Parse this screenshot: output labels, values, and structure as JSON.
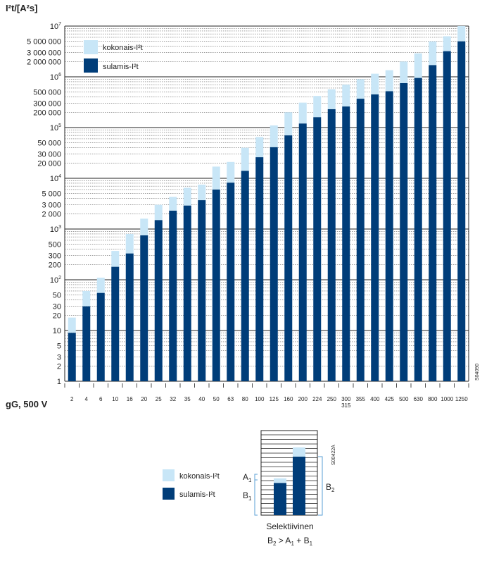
{
  "chart_data": [
    {
      "type": "bar",
      "stacked": true,
      "y_scale": "log",
      "ylabel": "I²t/[A²s]",
      "xlabel": "gG, 500 V",
      "ylim": [
        1,
        10000000
      ],
      "y_major_ticks": [
        {
          "value": 1,
          "label": "1"
        },
        {
          "value": 10,
          "label": "10"
        },
        {
          "value": 100,
          "label": "10",
          "sup": "2"
        },
        {
          "value": 1000,
          "label": "10",
          "sup": "3"
        },
        {
          "value": 10000,
          "label": "10",
          "sup": "4"
        },
        {
          "value": 100000,
          "label": "10",
          "sup": "5"
        },
        {
          "value": 1000000,
          "label": "10",
          "sup": "6"
        },
        {
          "value": 10000000,
          "label": "10",
          "sup": "7"
        }
      ],
      "y_minor_tick_labels": [
        {
          "value": 2,
          "label": "2"
        },
        {
          "value": 3,
          "label": "3"
        },
        {
          "value": 5,
          "label": "5"
        },
        {
          "value": 20,
          "label": "20"
        },
        {
          "value": 30,
          "label": "30"
        },
        {
          "value": 50,
          "label": "50"
        },
        {
          "value": 200,
          "label": "200"
        },
        {
          "value": 300,
          "label": "300"
        },
        {
          "value": 500,
          "label": "500"
        },
        {
          "value": 2000,
          "label": "2 000"
        },
        {
          "value": 3000,
          "label": "3 000"
        },
        {
          "value": 5000,
          "label": "5 000"
        },
        {
          "value": 20000,
          "label": "20 000"
        },
        {
          "value": 30000,
          "label": "30 000"
        },
        {
          "value": 50000,
          "label": "50 000"
        },
        {
          "value": 200000,
          "label": "200 000"
        },
        {
          "value": 300000,
          "label": "300 000"
        },
        {
          "value": 500000,
          "label": "500 000"
        },
        {
          "value": 2000000,
          "label": "2 000 000"
        },
        {
          "value": 3000000,
          "label": "3 000 000"
        },
        {
          "value": 5000000,
          "label": "5 000 000"
        }
      ],
      "categories": [
        "2",
        "4",
        "6",
        "10",
        "16",
        "20",
        "25",
        "32",
        "35",
        "40",
        "50",
        "63",
        "80",
        "100",
        "125",
        "160",
        "200",
        "224",
        "250",
        "300",
        "355",
        "400",
        "425",
        "500",
        "630",
        "800",
        "1000",
        "1250"
      ],
      "extra_category_labels": [
        {
          "under": "300",
          "label": "315"
        }
      ],
      "grid": true,
      "legend_position": "top-left",
      "code": "S04090",
      "series": [
        {
          "name": "sulamis-I²t",
          "color": "#003d79",
          "values": [
            9,
            30,
            55,
            180,
            330,
            750,
            1500,
            2300,
            2900,
            3700,
            6000,
            8200,
            14000,
            26000,
            41000,
            70000,
            120000,
            160000,
            230000,
            260000,
            370000,
            450000,
            520000,
            750000,
            950000,
            1700000,
            3200000,
            5000000
          ]
        },
        {
          "name": "kokonais-I²t",
          "color": "#c8e6f7",
          "values": [
            18,
            60,
            110,
            370,
            800,
            1600,
            3000,
            4300,
            6500,
            7500,
            17000,
            21000,
            40000,
            65000,
            110000,
            200000,
            310000,
            420000,
            570000,
            700000,
            900000,
            1150000,
            1350000,
            2000000,
            2900000,
            5000000,
            6300000,
            10000000
          ]
        }
      ]
    },
    {
      "type": "bar",
      "stacked": true,
      "title": "Selektiivinen",
      "code": "S00422A",
      "legend": [
        {
          "name": "kokonais-I²t",
          "color": "#c8e6f7"
        },
        {
          "name": "sulamis-I²t",
          "color": "#003d79"
        }
      ],
      "annotations": {
        "a1": "A",
        "a1_sub": "1",
        "b1": "B",
        "b1_sub": "1",
        "b2": "B",
        "b2_sub": "2"
      },
      "formula": {
        "b": "B",
        "b_sub": "2",
        "gt": " > ",
        "a": "A",
        "a_sub": "1",
        "plus": " + ",
        "b1": "B",
        "b1_sub": "1"
      },
      "series": [
        {
          "name": "sulamis-I²t",
          "values": [
            0.55,
            1.0
          ]
        },
        {
          "name": "kokonais-I²t",
          "values": [
            0.63,
            1.16
          ]
        }
      ]
    }
  ]
}
